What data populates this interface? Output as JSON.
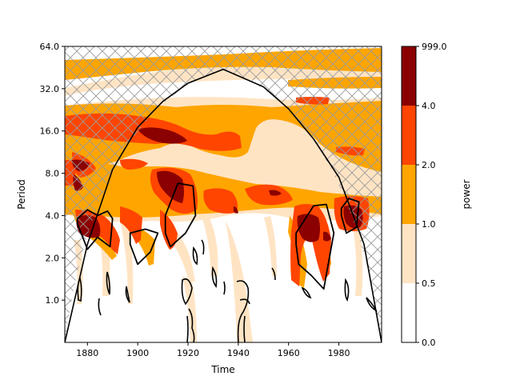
{
  "chart_data": [
    {
      "type": "heatmap",
      "subtype": "wavelet-power-spectrum",
      "title": "",
      "xlabel": "Time",
      "ylabel": "Period",
      "xlim": [
        1871,
        1997
      ],
      "ylim": [
        0.5,
        64.0
      ],
      "yscale": "log2",
      "xticks": [
        1880,
        1900,
        1920,
        1940,
        1960,
        1980
      ],
      "xtick_labels": [
        "1880",
        "1900",
        "1920",
        "1940",
        "1960",
        "1980"
      ],
      "yticks": [
        1.0,
        2.0,
        4.0,
        8.0,
        16.0,
        32.0,
        64.0
      ],
      "ytick_labels": [
        "1.0",
        "2.0",
        "4.0",
        "8.0",
        "16.0",
        "32.0",
        "64.0"
      ],
      "levels": [
        0.0,
        0.5,
        1.0,
        2.0,
        4.0,
        999.0
      ],
      "level_colors": [
        "#ffffff",
        "#ffe4c4",
        "#ffa500",
        "#ff4500",
        "#8b0000"
      ],
      "cone_of_influence": {
        "x": [
          1871,
          1880,
          1890,
          1900,
          1910,
          1920,
          1934,
          1950,
          1960,
          1970,
          1980,
          1990,
          1997
        ],
        "period": [
          0.5,
          2.5,
          8.5,
          17.0,
          26.0,
          35.0,
          44.0,
          33.0,
          23.0,
          14.0,
          7.5,
          2.5,
          0.5
        ]
      },
      "significance_regions": [
        {
          "x": [
            1876,
            1880,
            1884,
            1888,
            1890,
            1889,
            1884,
            1880,
            1876
          ],
          "period": [
            3.8,
            4.4,
            4.0,
            4.3,
            3.8,
            2.4,
            2.8,
            2.3,
            3.5
          ]
        },
        {
          "x": [
            1897,
            1903,
            1908,
            1905,
            1900,
            1897
          ],
          "period": [
            3.0,
            3.2,
            3.0,
            2.2,
            1.8,
            2.5
          ]
        },
        {
          "x": [
            1911,
            1916,
            1922,
            1923,
            1919,
            1913,
            1911
          ],
          "period": [
            4.0,
            6.8,
            6.5,
            4.0,
            3.0,
            2.4,
            3.0
          ]
        },
        {
          "x": [
            1963,
            1970,
            1975,
            1978,
            1974,
            1969,
            1964,
            1963
          ],
          "period": [
            3.0,
            4.7,
            4.8,
            3.0,
            1.2,
            1.5,
            1.8,
            2.5
          ]
        },
        {
          "x": [
            1981,
            1984,
            1988,
            1987,
            1983,
            1981
          ],
          "period": [
            4.5,
            5.3,
            5.0,
            3.3,
            3.0,
            4.0
          ]
        }
      ]
    },
    {
      "type": "colorbar",
      "label": "power",
      "tick_labels": [
        "0.0",
        "0.5",
        "1.0",
        "2.0",
        "4.0",
        "999.0"
      ],
      "colors": [
        "#ffffff",
        "#ffe4c4",
        "#ffa500",
        "#ff4500",
        "#8b0000"
      ]
    }
  ]
}
